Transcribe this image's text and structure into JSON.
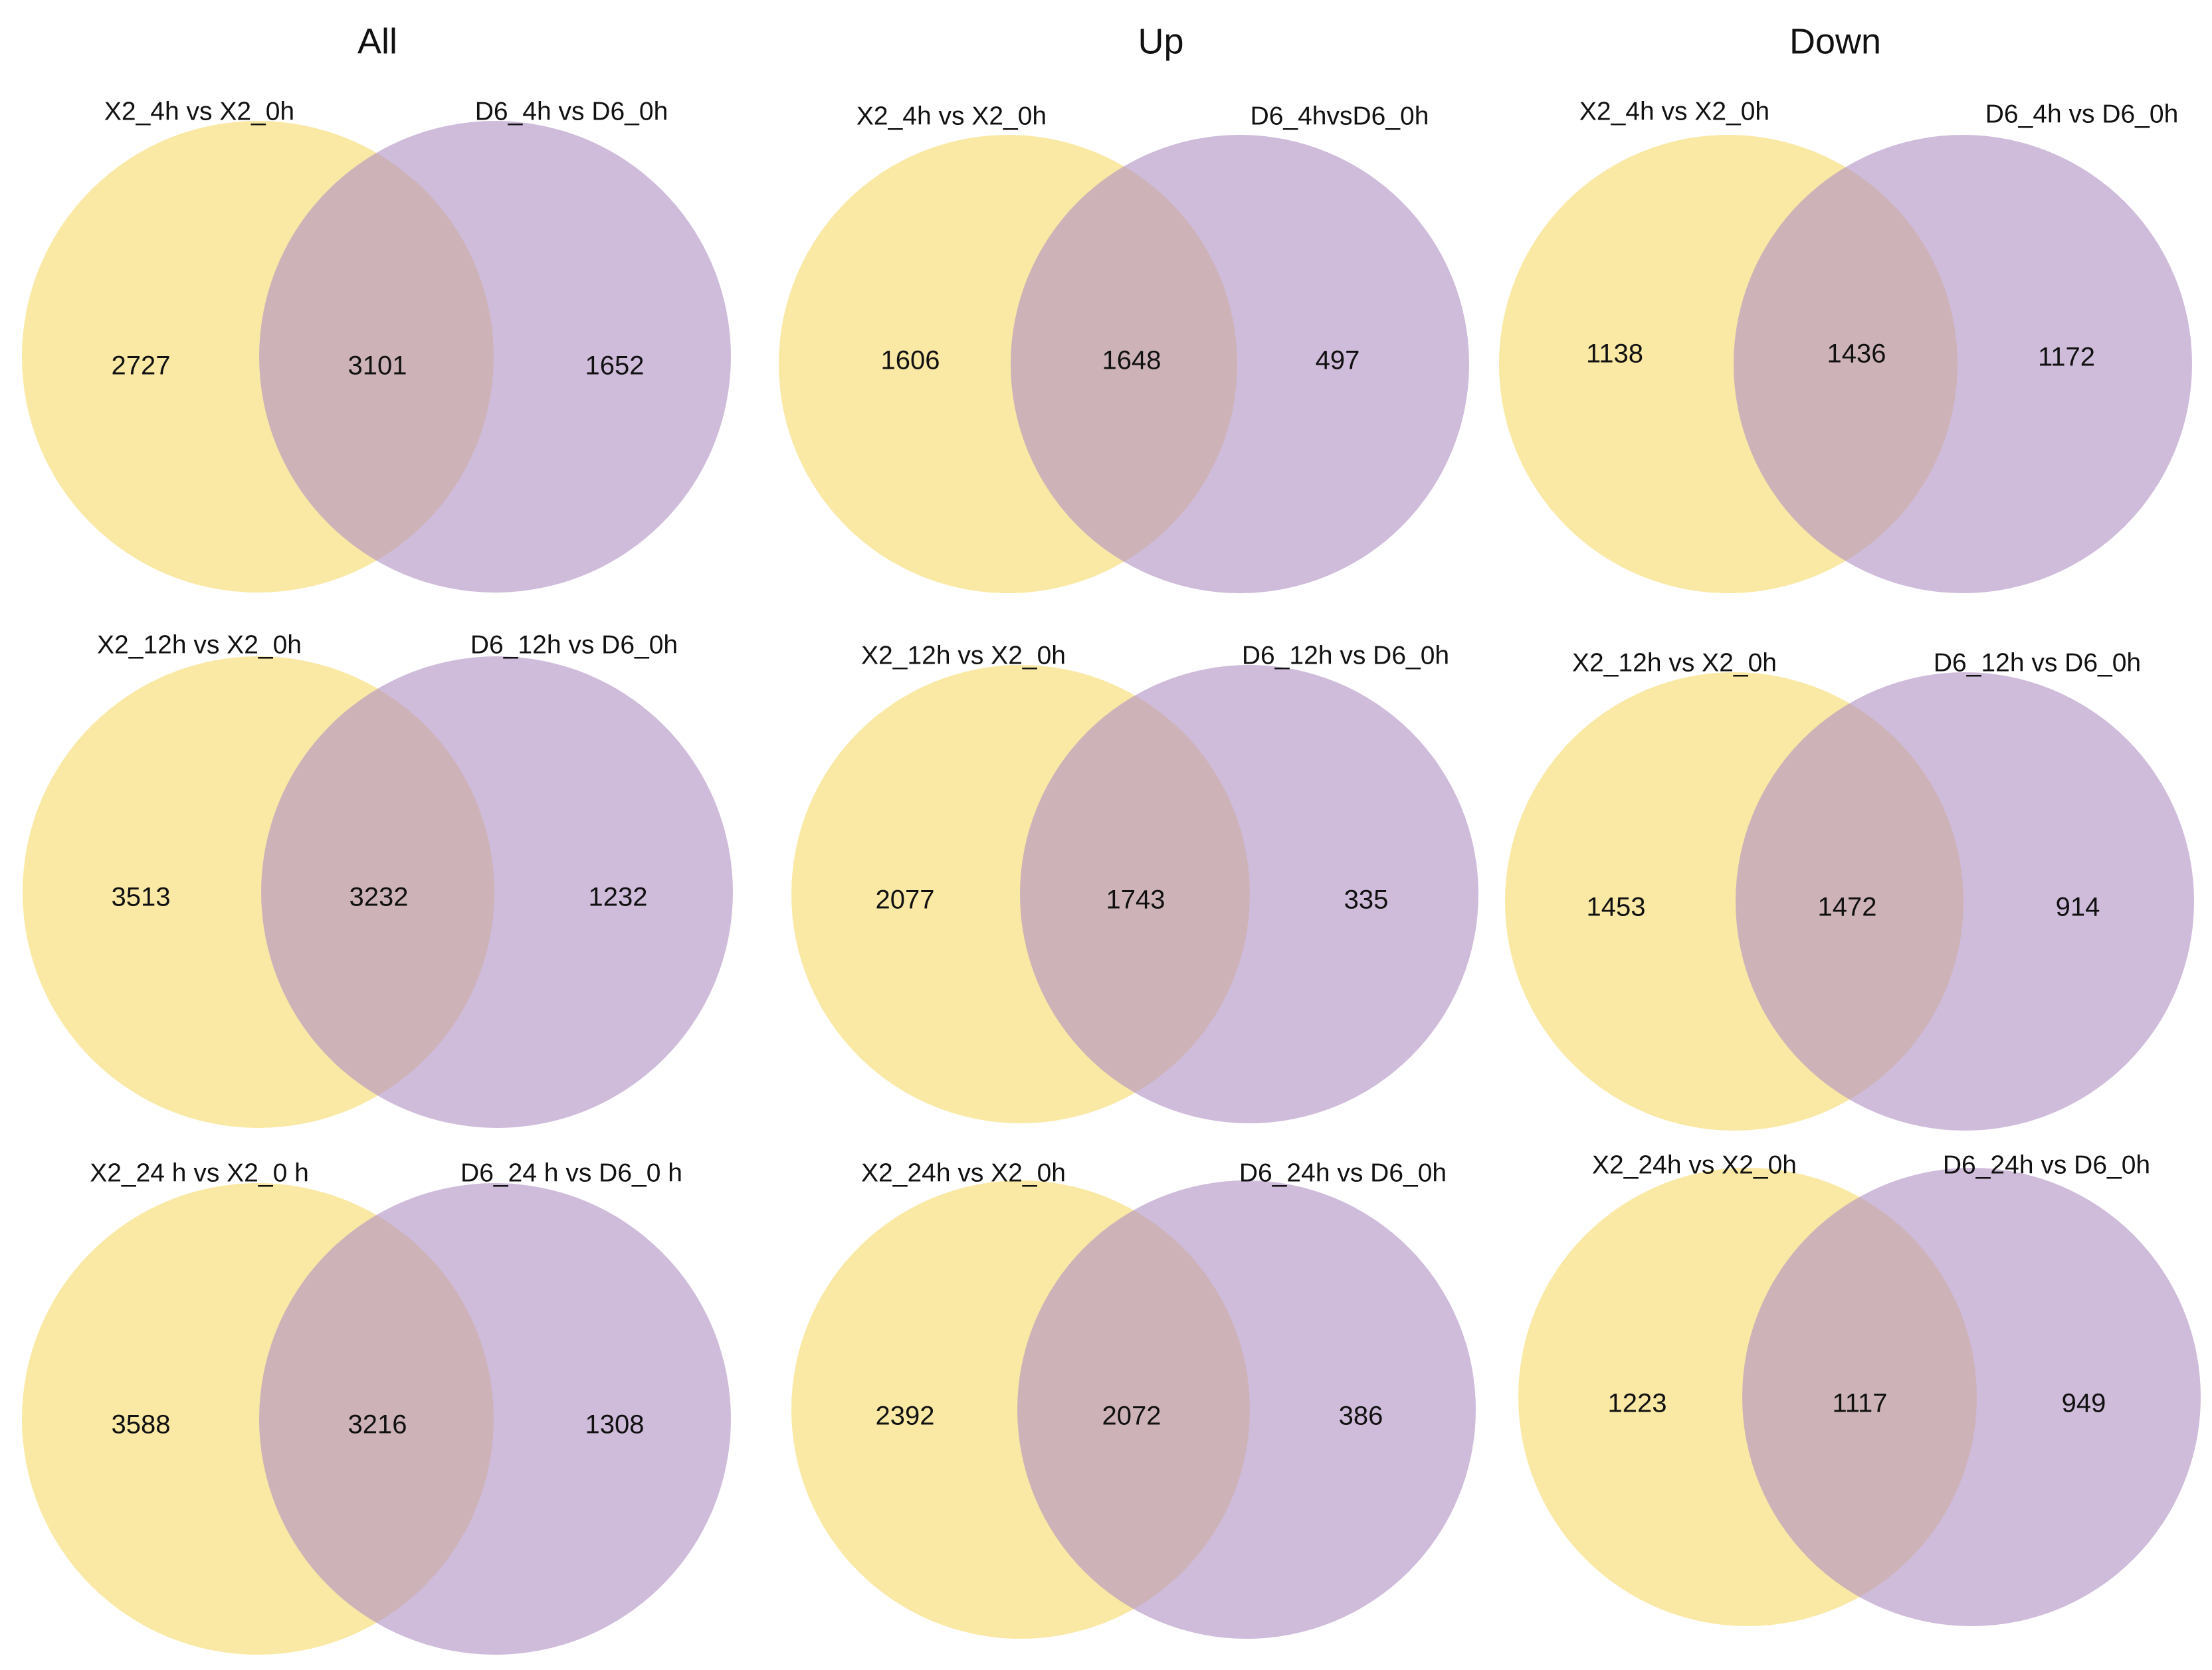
{
  "colors": {
    "set_a": "#f6dc6e",
    "set_b": "#b192c3",
    "opacity": 0.62
  },
  "columns": [
    {
      "title": "All",
      "panels": [
        {
          "label_a": "X2_4h vs X2_0h",
          "label_b": "D6_4h vs D6_0h",
          "only_a": "2727",
          "both": "3101",
          "only_b": "1652"
        },
        {
          "label_a": "X2_12h vs X2_0h",
          "label_b": "D6_12h vs D6_0h",
          "only_a": "3513",
          "both": "3232",
          "only_b": "1232"
        },
        {
          "label_a": "X2_24 h vs X2_0 h",
          "label_b": "D6_24 h vs D6_0 h",
          "only_a": "3588",
          "both": "3216",
          "only_b": "1308"
        }
      ]
    },
    {
      "title": "Up",
      "panels": [
        {
          "label_a": "X2_4h vs X2_0h",
          "label_b": "D6_4hvsD6_0h",
          "only_a": "1606",
          "both": "1648",
          "only_b": "497"
        },
        {
          "label_a": "X2_12h vs X2_0h",
          "label_b": "D6_12h vs D6_0h",
          "only_a": "2077",
          "both": "1743",
          "only_b": "335"
        },
        {
          "label_a": "X2_24h vs X2_0h",
          "label_b": "D6_24h vs D6_0h",
          "only_a": "2392",
          "both": "2072",
          "only_b": "386"
        }
      ]
    },
    {
      "title": "Down",
      "panels": [
        {
          "label_a": "X2_4h vs X2_0h",
          "label_b": "D6_4h vs D6_0h",
          "only_a": "1138",
          "both": "1436",
          "only_b": "1172"
        },
        {
          "label_a": "X2_12h vs X2_0h",
          "label_b": "D6_12h vs D6_0h",
          "only_a": "1453",
          "both": "1472",
          "only_b": "914"
        },
        {
          "label_a": "X2_24h vs X2_0h",
          "label_b": "D6_24h vs D6_0h",
          "only_a": "1223",
          "both": "1117",
          "only_b": "949"
        }
      ]
    }
  ]
}
